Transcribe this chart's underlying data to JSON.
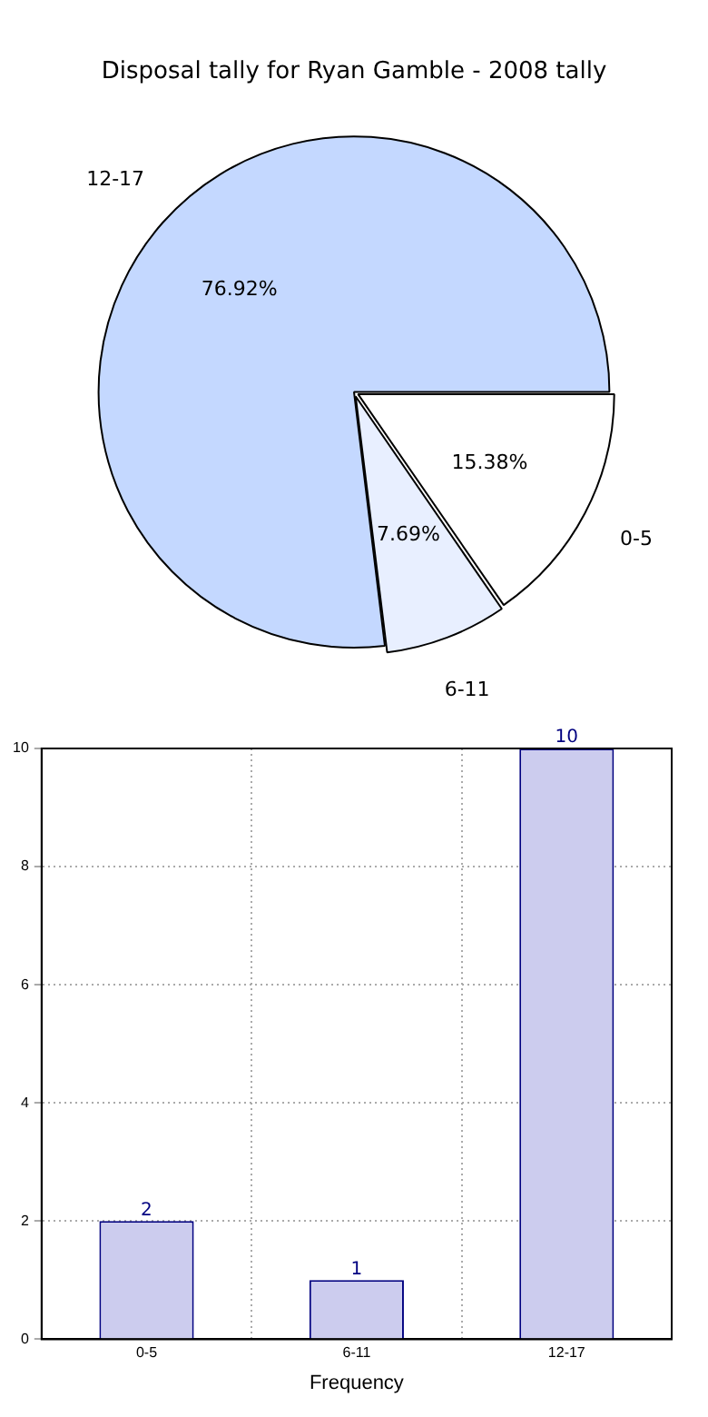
{
  "chart_data": [
    {
      "type": "pie",
      "title": "Disposal tally for Ryan Gamble - 2008 tally",
      "categories": [
        "0-5",
        "6-11",
        "12-17"
      ],
      "values": [
        15.38,
        7.69,
        76.92
      ],
      "colors": [
        "#ffffff",
        "#e8efff",
        "#c4d8ff"
      ],
      "value_labels": [
        "15.38%",
        "7.69%",
        "76.92%"
      ],
      "legend": false
    },
    {
      "type": "bar",
      "xlabel": "Frequency",
      "categories": [
        "0-5",
        "6-11",
        "12-17"
      ],
      "values": [
        2,
        1,
        10
      ],
      "color": "#ccccee",
      "ylim": [
        0,
        10
      ],
      "yticks": [
        0,
        2,
        4,
        6,
        8,
        10
      ],
      "grid": true,
      "data_labels": true,
      "legend": false
    }
  ]
}
